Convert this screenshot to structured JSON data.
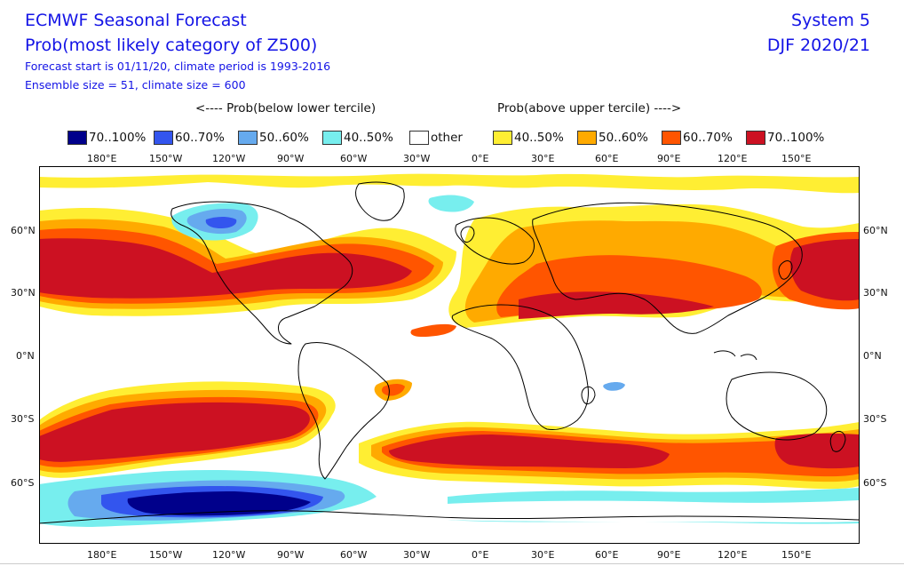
{
  "header": {
    "title": "ECMWF Seasonal Forecast",
    "subtitle": "Prob(most likely category of Z500)",
    "line3": "Forecast start is 01/11/20, climate period is 1993-2016",
    "line4": "Ensemble size = 51, climate size = 600",
    "system": "System 5",
    "season": "DJF 2020/21"
  },
  "legend_headers": {
    "below": "<---- Prob(below lower tercile)",
    "above": "Prob(above upper tercile) ---->"
  },
  "legend": [
    {
      "label": "70..100%",
      "color": "#00008b"
    },
    {
      "label": "60..70%",
      "color": "#3355ee"
    },
    {
      "label": "50..60%",
      "color": "#66aaee"
    },
    {
      "label": "40..50%",
      "color": "#77eeee"
    },
    {
      "label": "other",
      "color": "#ffffff"
    },
    {
      "label": "40..50%",
      "color": "#ffee33"
    },
    {
      "label": "50..60%",
      "color": "#ffaa00"
    },
    {
      "label": "60..70%",
      "color": "#ff5500"
    },
    {
      "label": "70..100%",
      "color": "#cc1122"
    }
  ],
  "x_ticks": [
    "180°E",
    "150°W",
    "120°W",
    "90°W",
    "60°W",
    "30°W",
    "0°E",
    "30°E",
    "60°E",
    "90°E",
    "120°E",
    "150°E"
  ],
  "y_ticks": [
    "60°N",
    "30°N",
    "0°N",
    "30°S",
    "60°S"
  ]
}
